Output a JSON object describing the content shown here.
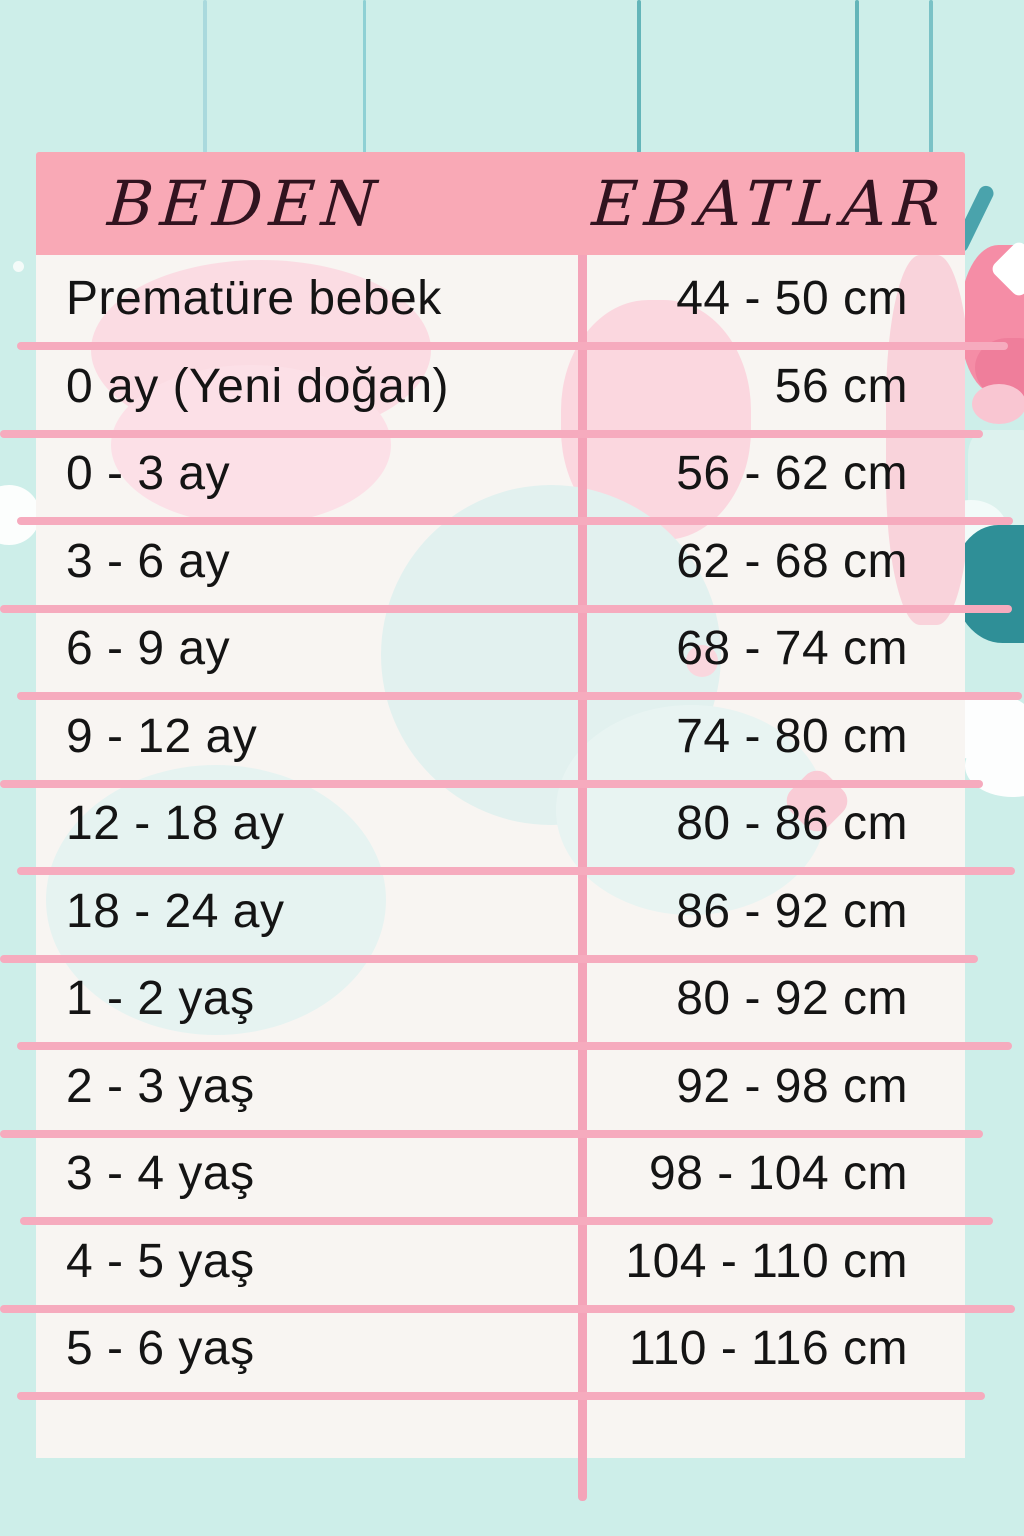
{
  "chart_data": {
    "type": "table",
    "columns": [
      "BEDEN",
      "EBATLAR"
    ],
    "rows": [
      [
        "Prematüre bebek",
        "44 - 50 cm"
      ],
      [
        "0 ay (Yeni doğan)",
        "56 cm"
      ],
      [
        "0 - 3 ay",
        "56 - 62 cm"
      ],
      [
        "3 - 6 ay",
        "62 - 68 cm"
      ],
      [
        "6 - 9 ay",
        "68 - 74 cm"
      ],
      [
        "9 - 12 ay",
        "74 - 80 cm"
      ],
      [
        "12 - 18 ay",
        "80 - 86 cm"
      ],
      [
        "18 - 24 ay",
        "86 - 92 cm"
      ],
      [
        "1 - 2 yaş",
        "80 - 92 cm"
      ],
      [
        "2 - 3 yaş",
        "92 - 98 cm"
      ],
      [
        "3 - 4 yaş",
        "98 - 104 cm"
      ],
      [
        "4 - 5 yaş",
        "104 - 110 cm"
      ],
      [
        "5 - 6 yaş",
        "110 - 116 cm"
      ]
    ],
    "title": "",
    "layout_hints": "two-column size chart; header band pink; pink rule lines between rows; vertical pink divider between columns"
  },
  "colors": {
    "background_teal": "#cdeee9",
    "header_pink": "#f9a9b6",
    "grid_line_pink": "#f6abbe",
    "row_background": "#f8f5f2",
    "body_text": "#141414",
    "header_text": "#31131f",
    "accent_dark_teal": "#2f8f97",
    "accent_pink_blob": "#f58da6"
  }
}
